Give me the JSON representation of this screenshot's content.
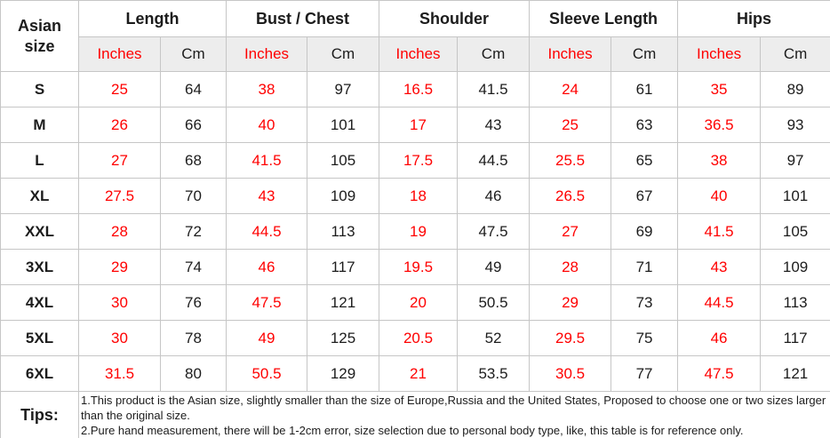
{
  "table": {
    "corner_header": "Asian size",
    "groups": [
      {
        "label": "Length"
      },
      {
        "label": "Bust / Chest"
      },
      {
        "label": "Shoulder"
      },
      {
        "label": "Sleeve Length"
      },
      {
        "label": "Hips"
      }
    ],
    "unit_headers": {
      "inches": "Inches",
      "cm": "Cm"
    },
    "rows": [
      {
        "size": "S",
        "values": [
          "25",
          "64",
          "38",
          "97",
          "16.5",
          "41.5",
          "24",
          "61",
          "35",
          "89"
        ]
      },
      {
        "size": "M",
        "values": [
          "26",
          "66",
          "40",
          "101",
          "17",
          "43",
          "25",
          "63",
          "36.5",
          "93"
        ]
      },
      {
        "size": "L",
        "values": [
          "27",
          "68",
          "41.5",
          "105",
          "17.5",
          "44.5",
          "25.5",
          "65",
          "38",
          "97"
        ]
      },
      {
        "size": "XL",
        "values": [
          "27.5",
          "70",
          "43",
          "109",
          "18",
          "46",
          "26.5",
          "67",
          "40",
          "101"
        ]
      },
      {
        "size": "XXL",
        "values": [
          "28",
          "72",
          "44.5",
          "113",
          "19",
          "47.5",
          "27",
          "69",
          "41.5",
          "105"
        ]
      },
      {
        "size": "3XL",
        "values": [
          "29",
          "74",
          "46",
          "117",
          "19.5",
          "49",
          "28",
          "71",
          "43",
          "109"
        ]
      },
      {
        "size": "4XL",
        "values": [
          "30",
          "76",
          "47.5",
          "121",
          "20",
          "50.5",
          "29",
          "73",
          "44.5",
          "113"
        ]
      },
      {
        "size": "5XL",
        "values": [
          "30",
          "78",
          "49",
          "125",
          "20.5",
          "52",
          "29.5",
          "75",
          "46",
          "117"
        ]
      },
      {
        "size": "6XL",
        "values": [
          "31.5",
          "80",
          "50.5",
          "129",
          "21",
          "53.5",
          "30.5",
          "77",
          "47.5",
          "121"
        ]
      }
    ],
    "tips": {
      "label": "Tips:",
      "lines": [
        "1.This product is the Asian size, slightly smaller than the size of Europe,Russia and the United States, Proposed to choose one or two sizes larger than the original size.",
        "2.Pure hand measurement, there will be 1-2cm error, size selection due to personal body type, like, this table is for reference only."
      ]
    },
    "colors": {
      "accent_red": "#ff0000",
      "text": "#1c1c1c",
      "border": "#c6c6c6",
      "subheader_bg": "#ededed"
    }
  }
}
